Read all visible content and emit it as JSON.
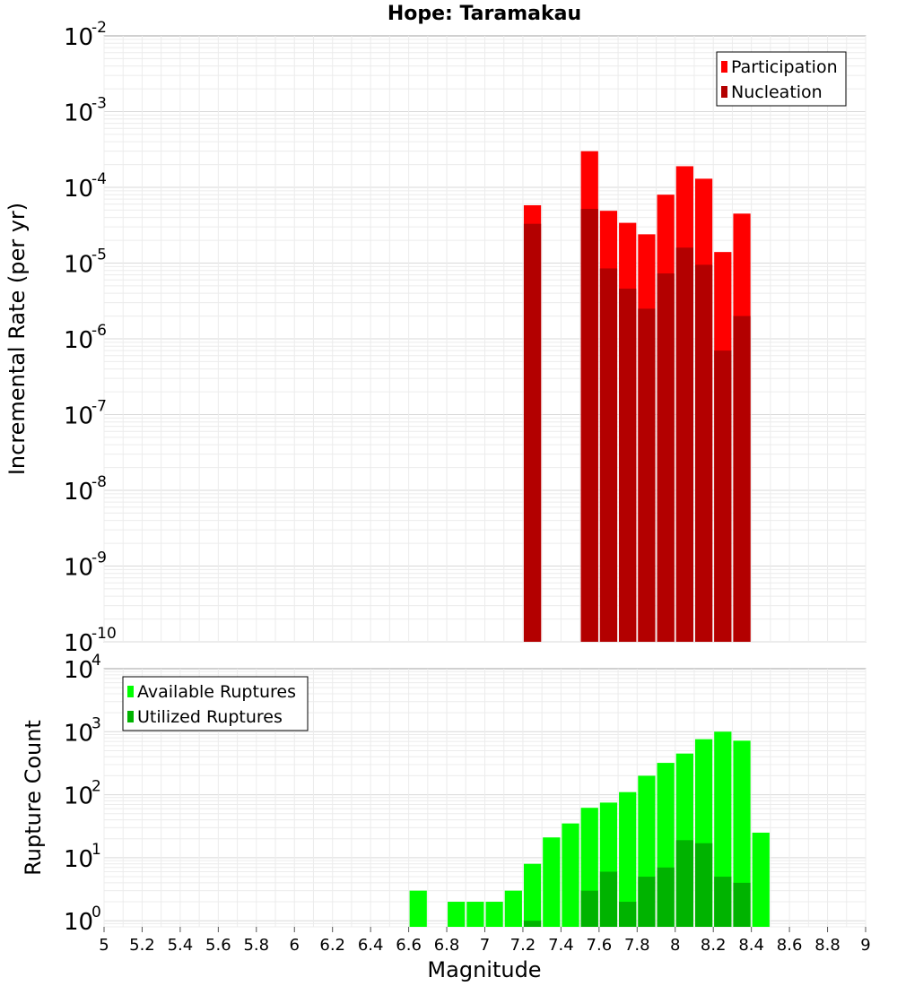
{
  "chart_data": [
    {
      "type": "bar",
      "panel": "top",
      "title": "Hope: Taramakau",
      "ylabel": "Incremental Rate (per yr)",
      "yscale": "log",
      "ylim": [
        1e-10,
        0.01
      ],
      "y_ticks": [
        {
          "base": "10",
          "exp": "-10",
          "value": 1e-10
        },
        {
          "base": "10",
          "exp": "-9",
          "value": 1e-09
        },
        {
          "base": "10",
          "exp": "-8",
          "value": 1e-08
        },
        {
          "base": "10",
          "exp": "-7",
          "value": 1e-07
        },
        {
          "base": "10",
          "exp": "-6",
          "value": 1e-06
        },
        {
          "base": "10",
          "exp": "-5",
          "value": 1e-05
        },
        {
          "base": "10",
          "exp": "-4",
          "value": 0.0001
        },
        {
          "base": "10",
          "exp": "-3",
          "value": 0.001
        },
        {
          "base": "10",
          "exp": "-2",
          "value": 0.01
        }
      ],
      "grid": true,
      "legend_position": "top-right",
      "series": [
        {
          "name": "Participation",
          "color": "#ff0000",
          "points": [
            {
              "x": 7.25,
              "y": 5.8e-05
            },
            {
              "x": 7.55,
              "y": 0.0003
            },
            {
              "x": 7.65,
              "y": 4.9e-05
            },
            {
              "x": 7.75,
              "y": 3.4e-05
            },
            {
              "x": 7.85,
              "y": 2.4e-05
            },
            {
              "x": 7.95,
              "y": 8e-05
            },
            {
              "x": 8.05,
              "y": 0.00019
            },
            {
              "x": 8.15,
              "y": 0.00013
            },
            {
              "x": 8.25,
              "y": 1.4e-05
            },
            {
              "x": 8.35,
              "y": 4.5e-05
            }
          ]
        },
        {
          "name": "Nucleation",
          "color": "#b30000",
          "points": [
            {
              "x": 7.25,
              "y": 3.3e-05
            },
            {
              "x": 7.55,
              "y": 5.2e-05
            },
            {
              "x": 7.65,
              "y": 8.5e-06
            },
            {
              "x": 7.75,
              "y": 4.6e-06
            },
            {
              "x": 7.85,
              "y": 2.5e-06
            },
            {
              "x": 7.95,
              "y": 7.3e-06
            },
            {
              "x": 8.05,
              "y": 1.6e-05
            },
            {
              "x": 8.15,
              "y": 9.5e-06
            },
            {
              "x": 8.25,
              "y": 7e-07
            },
            {
              "x": 8.35,
              "y": 2e-06
            }
          ]
        }
      ]
    },
    {
      "type": "bar",
      "panel": "bottom",
      "xlabel": "Magnitude",
      "ylabel": "Rupture Count",
      "yscale": "log",
      "ylim": [
        0.8,
        10000
      ],
      "y_ticks": [
        {
          "base": "10",
          "exp": "0",
          "value": 1
        },
        {
          "base": "10",
          "exp": "1",
          "value": 10
        },
        {
          "base": "10",
          "exp": "2",
          "value": 100
        },
        {
          "base": "10",
          "exp": "3",
          "value": 1000
        },
        {
          "base": "10",
          "exp": "4",
          "value": 10000
        }
      ],
      "xlim": [
        5,
        9
      ],
      "x_ticks": [
        "5",
        "5.2",
        "5.4",
        "5.6",
        "5.8",
        "6",
        "6.2",
        "6.4",
        "6.6",
        "6.8",
        "7",
        "7.2",
        "7.4",
        "7.6",
        "7.8",
        "8",
        "8.2",
        "8.4",
        "8.6",
        "8.8",
        "9"
      ],
      "grid": true,
      "legend_position": "top-left",
      "series": [
        {
          "name": "Available Ruptures",
          "color": "#00ff00",
          "points": [
            {
              "x": 6.65,
              "y": 3
            },
            {
              "x": 6.85,
              "y": 2
            },
            {
              "x": 6.95,
              "y": 2
            },
            {
              "x": 7.05,
              "y": 2
            },
            {
              "x": 7.15,
              "y": 3
            },
            {
              "x": 7.25,
              "y": 8
            },
            {
              "x": 7.35,
              "y": 21
            },
            {
              "x": 7.45,
              "y": 35
            },
            {
              "x": 7.55,
              "y": 62
            },
            {
              "x": 7.65,
              "y": 75
            },
            {
              "x": 7.75,
              "y": 110
            },
            {
              "x": 7.85,
              "y": 200
            },
            {
              "x": 7.95,
              "y": 320
            },
            {
              "x": 8.05,
              "y": 450
            },
            {
              "x": 8.15,
              "y": 760
            },
            {
              "x": 8.25,
              "y": 1000
            },
            {
              "x": 8.35,
              "y": 720
            },
            {
              "x": 8.45,
              "y": 25
            }
          ]
        },
        {
          "name": "Utilized Ruptures",
          "color": "#00b300",
          "points": [
            {
              "x": 7.25,
              "y": 1
            },
            {
              "x": 7.55,
              "y": 3
            },
            {
              "x": 7.65,
              "y": 6
            },
            {
              "x": 7.75,
              "y": 2
            },
            {
              "x": 7.85,
              "y": 5
            },
            {
              "x": 7.95,
              "y": 7
            },
            {
              "x": 8.05,
              "y": 19
            },
            {
              "x": 8.15,
              "y": 17
            },
            {
              "x": 8.25,
              "y": 5
            },
            {
              "x": 8.35,
              "y": 4
            }
          ]
        }
      ]
    }
  ]
}
